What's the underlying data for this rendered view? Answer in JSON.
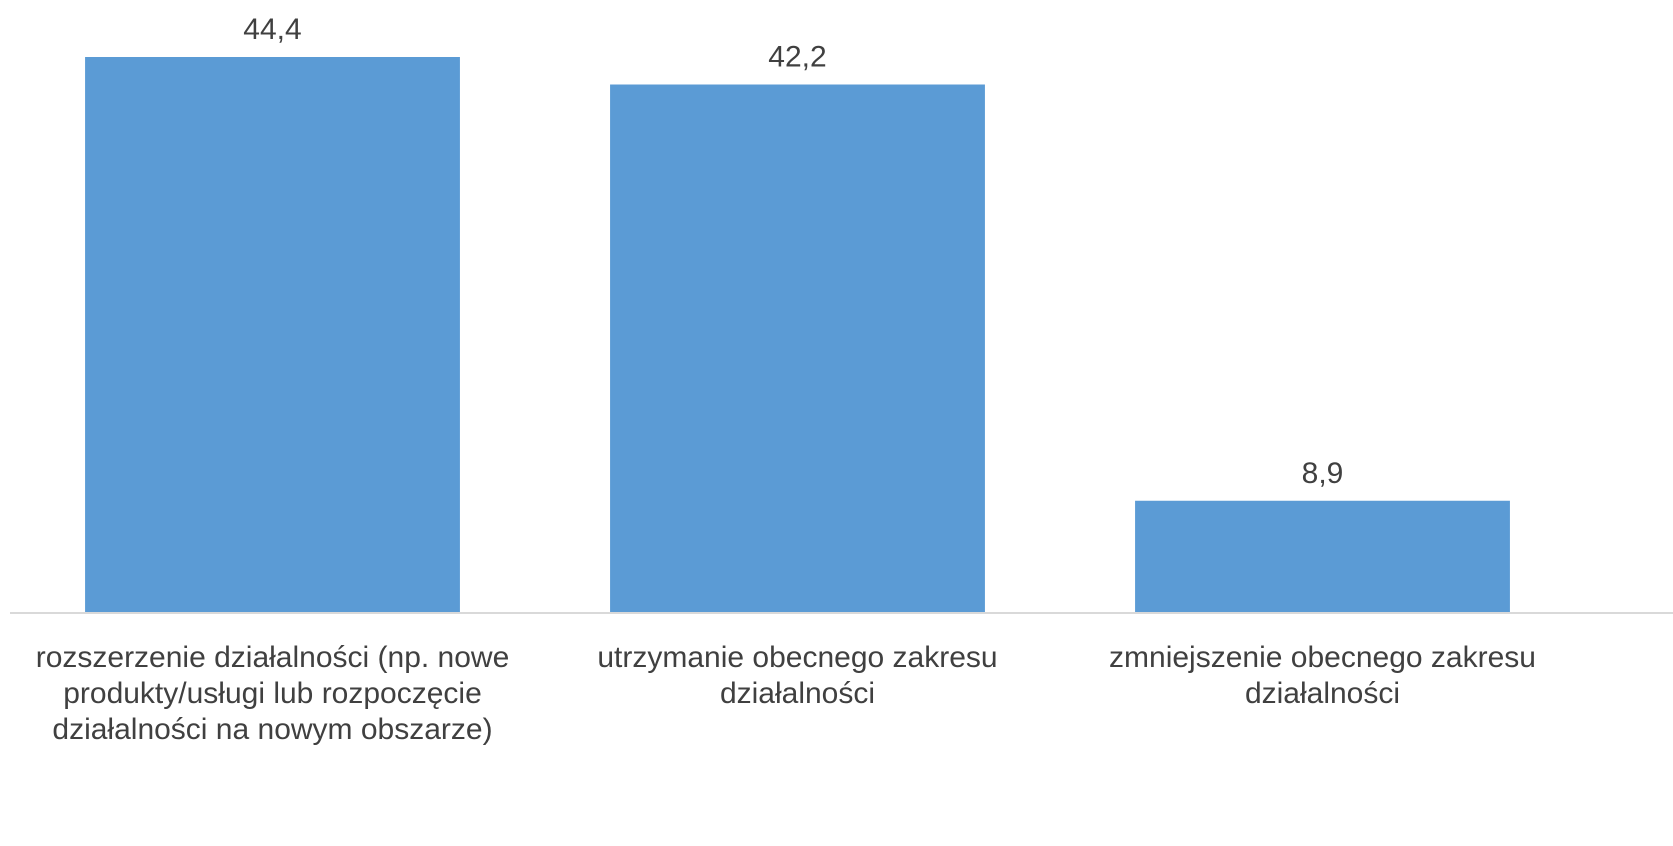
{
  "chart_data": {
    "type": "bar",
    "categories": [
      "rozszerzenie działalności (np. nowe produkty/usługi lub rozpoczęcie działalności na nowym obszarze)",
      "utrzymanie obecnego zakresu działalności",
      "zmniejszenie obecnego zakresu działalności"
    ],
    "values": [
      44.4,
      42.2,
      8.9
    ],
    "value_labels": [
      "44,4",
      "42,2",
      "8,9"
    ],
    "color": "#5b9bd5"
  }
}
